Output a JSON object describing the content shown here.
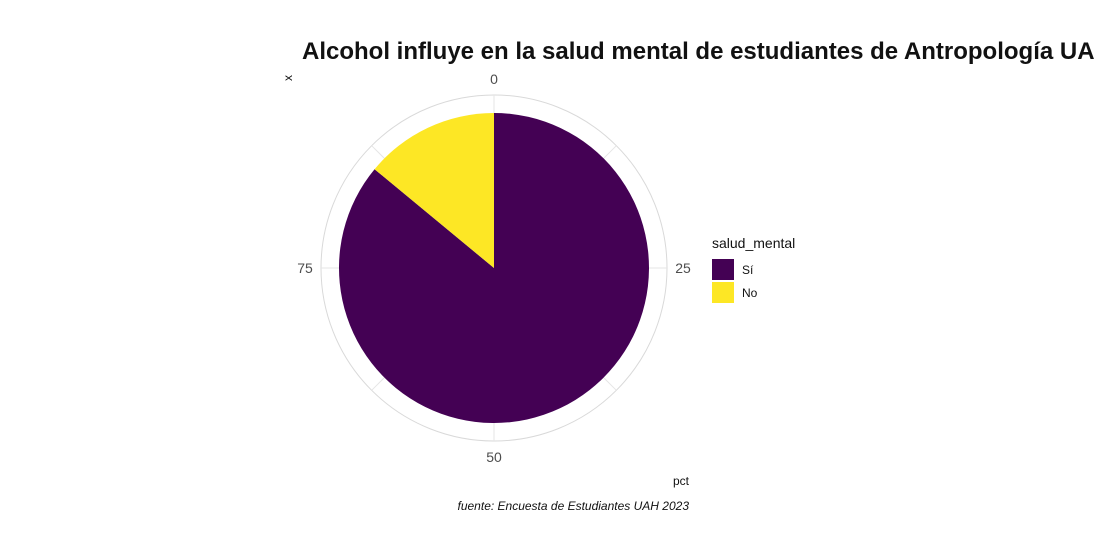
{
  "chart_data": {
    "type": "pie",
    "title": "Alcohol influye en la salud mental de estudiantes de Antropología UAH",
    "xlabel": "pct",
    "ylabel": "x",
    "caption": "fuente: Encuesta de Estudiantes UAH 2023",
    "legend_title": "salud_mental",
    "legend_position": "right",
    "theta_ticks": [
      "0",
      "25",
      "50",
      "75"
    ],
    "theta_range": [
      0,
      100
    ],
    "grid": true,
    "categories": [
      "Sí",
      "No"
    ],
    "values": [
      86,
      14
    ],
    "colors": [
      "#440154",
      "#FDE725"
    ]
  }
}
